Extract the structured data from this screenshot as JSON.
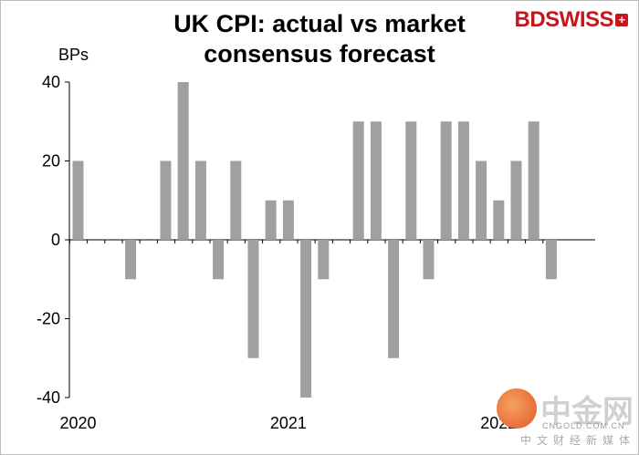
{
  "chart_data": {
    "type": "bar",
    "title": "UK CPI: actual vs market consensus forecast",
    "ylabel": "BPs",
    "ylim": [
      -40,
      40
    ],
    "yticks": [
      -40,
      -20,
      0,
      20,
      40
    ],
    "x_tick_labels": [
      "2020",
      "2021",
      "2022"
    ],
    "color": "#a0a0a0",
    "grid": false,
    "values": [
      20,
      null,
      null,
      -10,
      null,
      20,
      40,
      20,
      -10,
      20,
      -30,
      10,
      10,
      -40,
      -10,
      null,
      30,
      30,
      -30,
      30,
      -10,
      30,
      30,
      20,
      10,
      20,
      30,
      -10
    ]
  },
  "title": "UK CPI: actual vs market consensus forecast",
  "title_line1": "UK CPI: actual vs market",
  "title_line2": "consensus forecast",
  "ylabel": "BPs",
  "brand": {
    "bd": "BD",
    "swiss": "SWISS"
  },
  "watermark": {
    "text": "中金网",
    "url": "CNGOLD.COM.CN",
    "cn": "中文财经新媒体"
  }
}
